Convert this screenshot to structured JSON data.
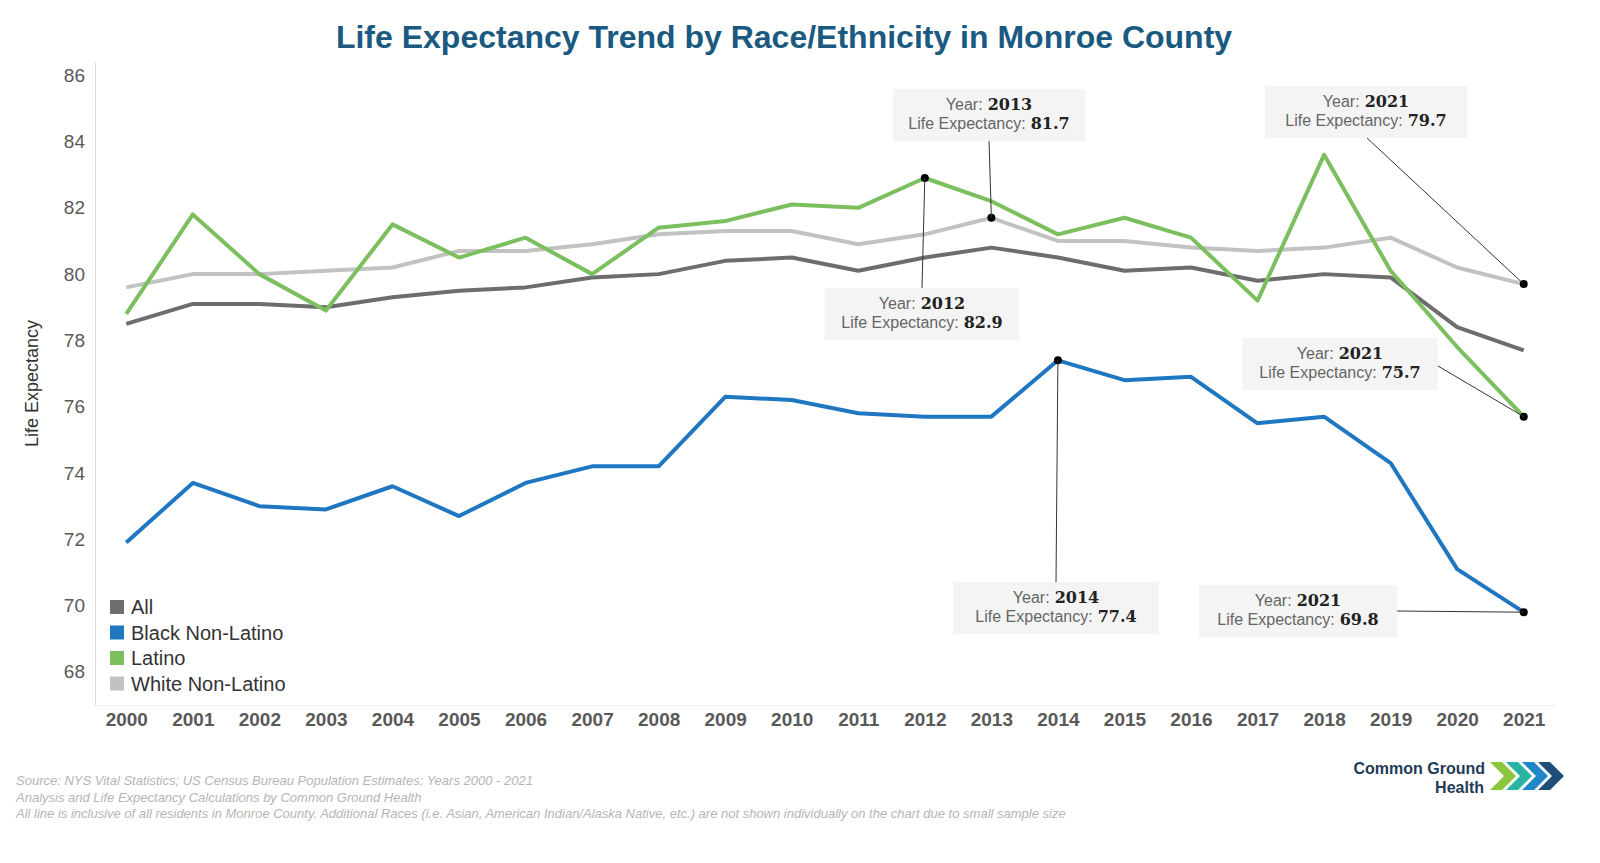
{
  "chart_data": {
    "type": "line",
    "title": "Life Expectancy Trend by Race/Ethnicity in Monroe County",
    "y_label": "Life Expectancy",
    "categories": [
      "2000",
      "2001",
      "2002",
      "2003",
      "2004",
      "2005",
      "2006",
      "2007",
      "2008",
      "2009",
      "2010",
      "2011",
      "2012",
      "2013",
      "2014",
      "2015",
      "2016",
      "2017",
      "2018",
      "2019",
      "2020",
      "2021"
    ],
    "series": [
      {
        "name": "All",
        "color": "#6d6d6d",
        "values": [
          78.5,
          79.1,
          79.1,
          79.0,
          79.3,
          79.5,
          79.6,
          79.9,
          80.0,
          80.4,
          80.5,
          80.1,
          80.5,
          80.8,
          80.5,
          80.1,
          80.2,
          79.8,
          80.0,
          79.9,
          78.4,
          77.7
        ]
      },
      {
        "name": "Black Non-Latino",
        "color": "#1f77c2",
        "values": [
          71.9,
          73.7,
          73.0,
          72.9,
          73.6,
          72.7,
          73.7,
          74.2,
          74.2,
          76.3,
          76.2,
          75.8,
          75.7,
          75.7,
          77.4,
          76.8,
          76.9,
          75.5,
          75.7,
          74.3,
          71.1,
          69.8
        ]
      },
      {
        "name": "Latino",
        "color": "#7cbf5f",
        "values": [
          78.8,
          81.8,
          80.0,
          78.9,
          81.5,
          80.5,
          81.1,
          80.0,
          81.4,
          81.6,
          82.1,
          82.0,
          82.9,
          82.2,
          81.2,
          81.7,
          81.1,
          79.2,
          83.6,
          80.1,
          77.8,
          75.7
        ]
      },
      {
        "name": "White Non-Latino",
        "color": "#c2c2c2",
        "values": [
          79.6,
          80.0,
          80.0,
          80.1,
          80.2,
          80.7,
          80.7,
          80.9,
          81.2,
          81.3,
          81.3,
          80.9,
          81.2,
          81.7,
          81.0,
          81.0,
          80.8,
          80.7,
          80.8,
          81.1,
          80.2,
          79.7
        ]
      }
    ],
    "ylim": [
      67,
      86.4
    ],
    "yticks": [
      68,
      70,
      72,
      74,
      76,
      78,
      80,
      82,
      84,
      86
    ],
    "grid": false,
    "legend": "lower left",
    "annotations": [
      {
        "year_text": "Year:",
        "x": "2013",
        "value_text": "Life Expectancy:",
        "y": 81.7
      },
      {
        "year_text": "Year:",
        "x": "2012",
        "value_text": "Life Expectancy:",
        "y": 82.9
      },
      {
        "year_text": "Year:",
        "x": "2021",
        "value_text": "Life Expectancy:",
        "y": 79.7
      },
      {
        "year_text": "Year:",
        "x": "2021",
        "value_text": "Life Expectancy:",
        "y": 75.7
      },
      {
        "year_text": "Year:",
        "x": "2014",
        "value_text": "Life Expectancy:",
        "y": 77.4
      },
      {
        "year_text": "Year:",
        "x": "2021",
        "value_text": "Life Expectancy:",
        "y": 69.8
      }
    ],
    "notes": [
      "Source: NYS Vital Statistics; US Census Bureau Population Estimates; Years 2000 - 2021",
      "Analysis and Life Expectancy Calculations by Common Ground Health",
      "All line is inclusive of all residents in Monroe County. Additional Races (i.e. Asian, American Indian/Alaska Native, etc.) are not shown individually on the chart due to small sample size"
    ],
    "logo_text": [
      "Common Ground",
      "Health"
    ]
  }
}
